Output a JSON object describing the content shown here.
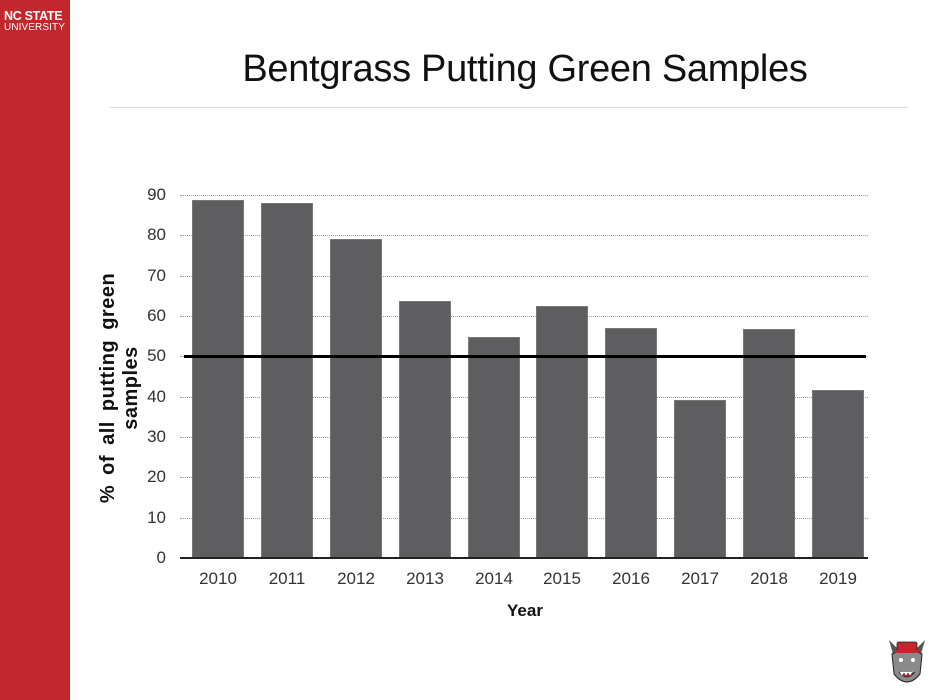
{
  "sidebar": {
    "brand_line1": "NC STATE",
    "brand_line2": "UNIVERSITY",
    "color": "#c1272d"
  },
  "header": {
    "title": "Bentgrass Putting Green Samples"
  },
  "chart_data": {
    "type": "bar",
    "title": "Bentgrass Putting Green Samples",
    "xlabel": "Year",
    "ylabel": "% of all putting green samples",
    "categories": [
      "2010",
      "2011",
      "2012",
      "2013",
      "2014",
      "2015",
      "2016",
      "2017",
      "2018",
      "2019"
    ],
    "values": [
      88.8,
      88,
      79,
      63.7,
      54.8,
      62.5,
      57,
      39.2,
      56.8,
      41.7
    ],
    "ylim": [
      0,
      90
    ],
    "yticks": [
      0,
      10,
      20,
      30,
      40,
      50,
      60,
      70,
      80,
      90
    ],
    "grid": true,
    "reference_line": {
      "y": 50,
      "color": "#000000"
    },
    "bar_color": "#5e5e60",
    "legend": null
  },
  "logos": {
    "mascot": "wolf-mascot-icon"
  }
}
